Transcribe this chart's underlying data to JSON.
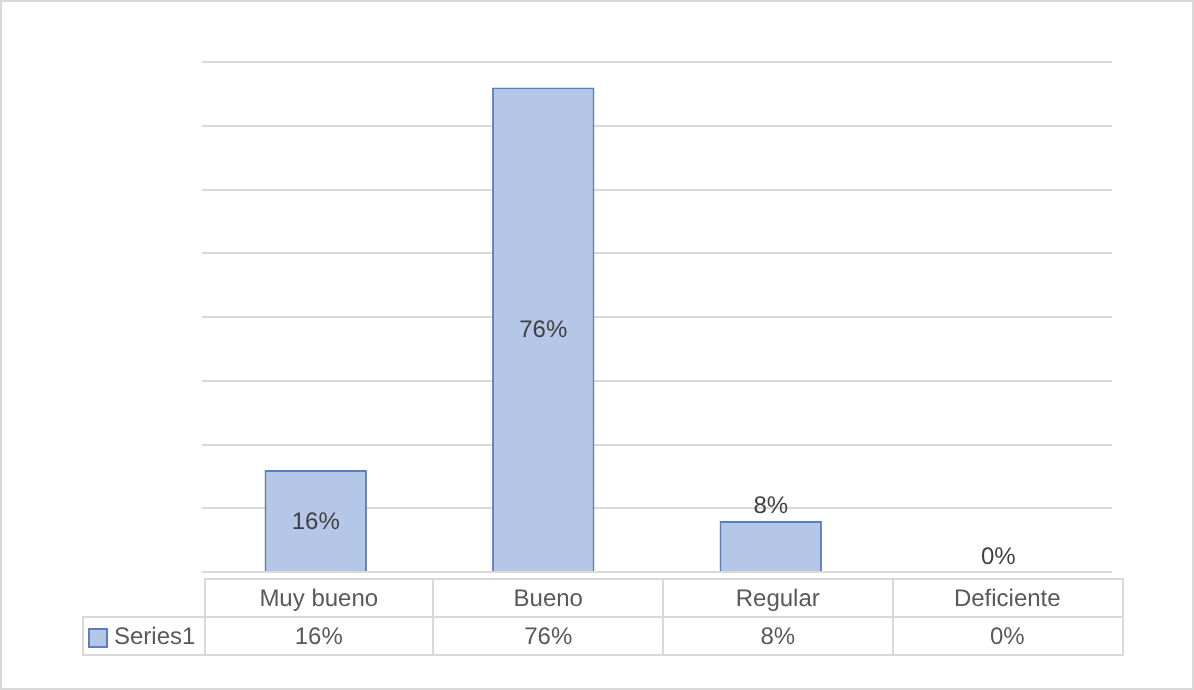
{
  "chart_data": {
    "type": "bar",
    "categories": [
      "Muy bueno",
      "Bueno",
      "Regular",
      "Deficiente"
    ],
    "series": [
      {
        "name": "Series1",
        "color": "#b4c7e7",
        "values": [
          16,
          76,
          8,
          0
        ],
        "value_labels": [
          "16%",
          "76%",
          "8%",
          "0%"
        ]
      }
    ],
    "grid": true,
    "legend": "bottom"
  }
}
